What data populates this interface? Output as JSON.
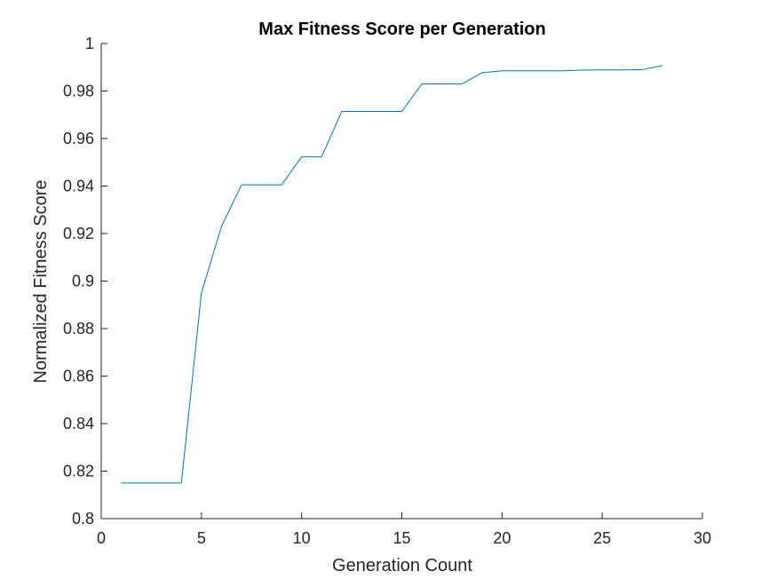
{
  "chart_data": {
    "type": "line",
    "title": "Max Fitness Score per Generation",
    "xlabel": "Generation Count",
    "ylabel": "Normalized Fitness Score",
    "xlim": [
      0,
      30
    ],
    "ylim": [
      0.8,
      1.0
    ],
    "xticks": [
      "0",
      "5",
      "10",
      "15",
      "20",
      "25",
      "30"
    ],
    "yticks": [
      "0.8",
      "0.82",
      "0.84",
      "0.86",
      "0.88",
      "0.9",
      "0.92",
      "0.94",
      "0.96",
      "0.98",
      "1"
    ],
    "grid": false,
    "line_color": "#0072BD",
    "series": [
      {
        "x": [
          1,
          2,
          3,
          4,
          5,
          6,
          7,
          8,
          9,
          10,
          11,
          12,
          13,
          14,
          15,
          16,
          17,
          18,
          19,
          20,
          21,
          22,
          23,
          24,
          25,
          26,
          27,
          28
        ],
        "values": [
          0.815,
          0.815,
          0.815,
          0.815,
          0.895,
          0.923,
          0.9405,
          0.9405,
          0.9405,
          0.9523,
          0.9523,
          0.9714,
          0.9714,
          0.9714,
          0.9714,
          0.983,
          0.983,
          0.983,
          0.9877,
          0.9885,
          0.9885,
          0.9885,
          0.9885,
          0.9888,
          0.9889,
          0.9889,
          0.989,
          0.9907
        ]
      }
    ]
  }
}
